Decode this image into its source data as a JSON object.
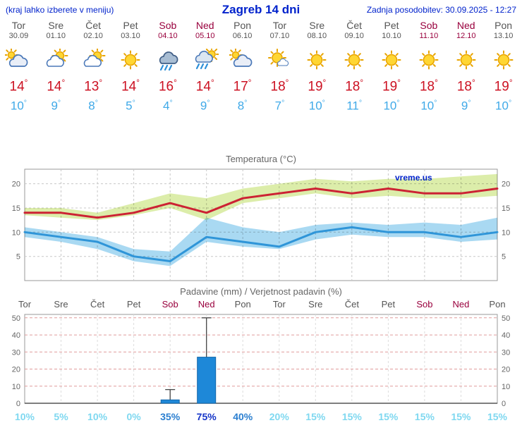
{
  "header": {
    "left_note": "(kraj lahko izberete v meniju)",
    "title": "Zagreb 14 dni",
    "updated": "Zadnja posodobitev: 30.09.2025 - 12:27"
  },
  "units": {
    "degree": "°"
  },
  "watermark": "vreme.us",
  "forecast": {
    "days": [
      {
        "name": "Tor",
        "date": "30.09",
        "icon": "cloudy",
        "high": 14,
        "low": 10,
        "weekend": false
      },
      {
        "name": "Sre",
        "date": "01.10",
        "icon": "partly-cloudy",
        "high": 14,
        "low": 9,
        "weekend": false
      },
      {
        "name": "Čet",
        "date": "02.10",
        "icon": "partly-cloudy",
        "high": 13,
        "low": 8,
        "weekend": false
      },
      {
        "name": "Pet",
        "date": "03.10",
        "icon": "sunny",
        "high": 14,
        "low": 5,
        "weekend": false
      },
      {
        "name": "Sob",
        "date": "04.10",
        "icon": "rain",
        "high": 16,
        "low": 4,
        "weekend": true
      },
      {
        "name": "Ned",
        "date": "05.10",
        "icon": "sun-rain",
        "high": 14,
        "low": 9,
        "weekend": true
      },
      {
        "name": "Pon",
        "date": "06.10",
        "icon": "cloudy",
        "high": 17,
        "low": 8,
        "weekend": false
      },
      {
        "name": "Tor",
        "date": "07.10",
        "icon": "mostly-sunny",
        "high": 18,
        "low": 7,
        "weekend": false
      },
      {
        "name": "Sre",
        "date": "08.10",
        "icon": "sunny",
        "high": 19,
        "low": 10,
        "weekend": false
      },
      {
        "name": "Čet",
        "date": "09.10",
        "icon": "sunny",
        "high": 18,
        "low": 11,
        "weekend": false
      },
      {
        "name": "Pet",
        "date": "10.10",
        "icon": "sunny",
        "high": 19,
        "low": 10,
        "weekend": false
      },
      {
        "name": "Sob",
        "date": "11.10",
        "icon": "sunny",
        "high": 18,
        "low": 10,
        "weekend": true
      },
      {
        "name": "Ned",
        "date": "12.10",
        "icon": "sunny",
        "high": 18,
        "low": 9,
        "weekend": true
      },
      {
        "name": "Pon",
        "date": "13.10",
        "icon": "sunny",
        "high": 19,
        "low": 10,
        "weekend": false
      }
    ]
  },
  "chart_data": [
    {
      "type": "area",
      "title": "Temperatura (°C)",
      "categories": [
        "Tor 30.09",
        "Sre 01.10",
        "Čet 02.10",
        "Pet 03.10",
        "Sob 04.10",
        "Ned 05.10",
        "Pon 06.10",
        "Tor 07.10",
        "Sre 08.10",
        "Čet 09.10",
        "Pet 10.10",
        "Sob 11.10",
        "Ned 12.10",
        "Pon 13.10"
      ],
      "series": [
        {
          "name": "temp_max",
          "values": [
            14,
            14,
            13,
            14,
            16,
            14,
            17,
            18,
            19,
            18,
            19,
            18,
            18,
            19
          ]
        },
        {
          "name": "temp_max_upper",
          "values": [
            15,
            15,
            14,
            16,
            18,
            17,
            19,
            20,
            21,
            20.5,
            21,
            21,
            21.5,
            22
          ]
        },
        {
          "name": "temp_max_lower",
          "values": [
            13.5,
            13,
            12.5,
            13.5,
            15,
            12.5,
            16,
            17,
            18,
            17,
            17.5,
            17,
            17,
            17.5
          ]
        },
        {
          "name": "temp_min",
          "values": [
            10,
            9,
            8,
            5,
            4,
            9,
            8,
            7,
            10,
            11,
            10,
            10,
            9,
            10
          ]
        },
        {
          "name": "temp_min_upper",
          "values": [
            11,
            10,
            9,
            6.5,
            6,
            13,
            11,
            10,
            11.5,
            12,
            11.5,
            12,
            11.5,
            13
          ]
        },
        {
          "name": "temp_min_lower",
          "values": [
            9,
            8,
            6.5,
            4,
            3,
            8,
            7,
            6.5,
            8.5,
            9.5,
            9,
            9,
            8,
            8.5
          ]
        }
      ],
      "ylim": [
        0,
        23
      ],
      "yticks": [
        5,
        10,
        15,
        20
      ],
      "grid": true,
      "legend": "none"
    },
    {
      "type": "bar",
      "title": "Padavine (mm) / Verjetnost padavin (%)",
      "categories": [
        "Tor",
        "Sre",
        "Čet",
        "Pet",
        "Sob",
        "Ned",
        "Pon",
        "Tor",
        "Sre",
        "Čet",
        "Pet",
        "Sob",
        "Ned",
        "Pon"
      ],
      "weekend_flags": [
        false,
        false,
        false,
        false,
        true,
        true,
        false,
        false,
        false,
        false,
        false,
        true,
        true,
        false
      ],
      "values": [
        0,
        0,
        0,
        0,
        2,
        27,
        0,
        0,
        0,
        0,
        0,
        0,
        0,
        0
      ],
      "whisker_high": [
        null,
        null,
        null,
        null,
        8,
        50,
        null,
        null,
        null,
        null,
        null,
        null,
        null,
        null
      ],
      "probabilities_pct": [
        10,
        5,
        10,
        0,
        35,
        75,
        40,
        20,
        15,
        15,
        15,
        15,
        15,
        15
      ],
      "prob_labels": [
        "10%",
        "5%",
        "10%",
        "0%",
        "35%",
        "75%",
        "40%",
        "20%",
        "15%",
        "15%",
        "15%",
        "15%",
        "15%",
        "15%"
      ],
      "ylim": [
        0,
        52
      ],
      "yticks": [
        0,
        10,
        20,
        30,
        40,
        50
      ],
      "grid": true,
      "legend": "none"
    }
  ],
  "colors": {
    "header_blue": "#0022cc",
    "weekday": "#555555",
    "weekend": "#99003d",
    "high_red": "#cc1122",
    "low_blue": "#3fa9e8",
    "band_high": "#dcedaa",
    "band_low": "#a9d9f2",
    "line_high": "#cc2233",
    "line_low": "#2f95d8",
    "bar_fill": "#1e88d8",
    "bar_stroke": "#1266aa",
    "grid": "#c8c8c8",
    "grid_precip": "#e09c9c",
    "prob_low": "#7fd8f0",
    "prob_mid": "#2b7fd0",
    "prob_high": "#1535c8"
  }
}
